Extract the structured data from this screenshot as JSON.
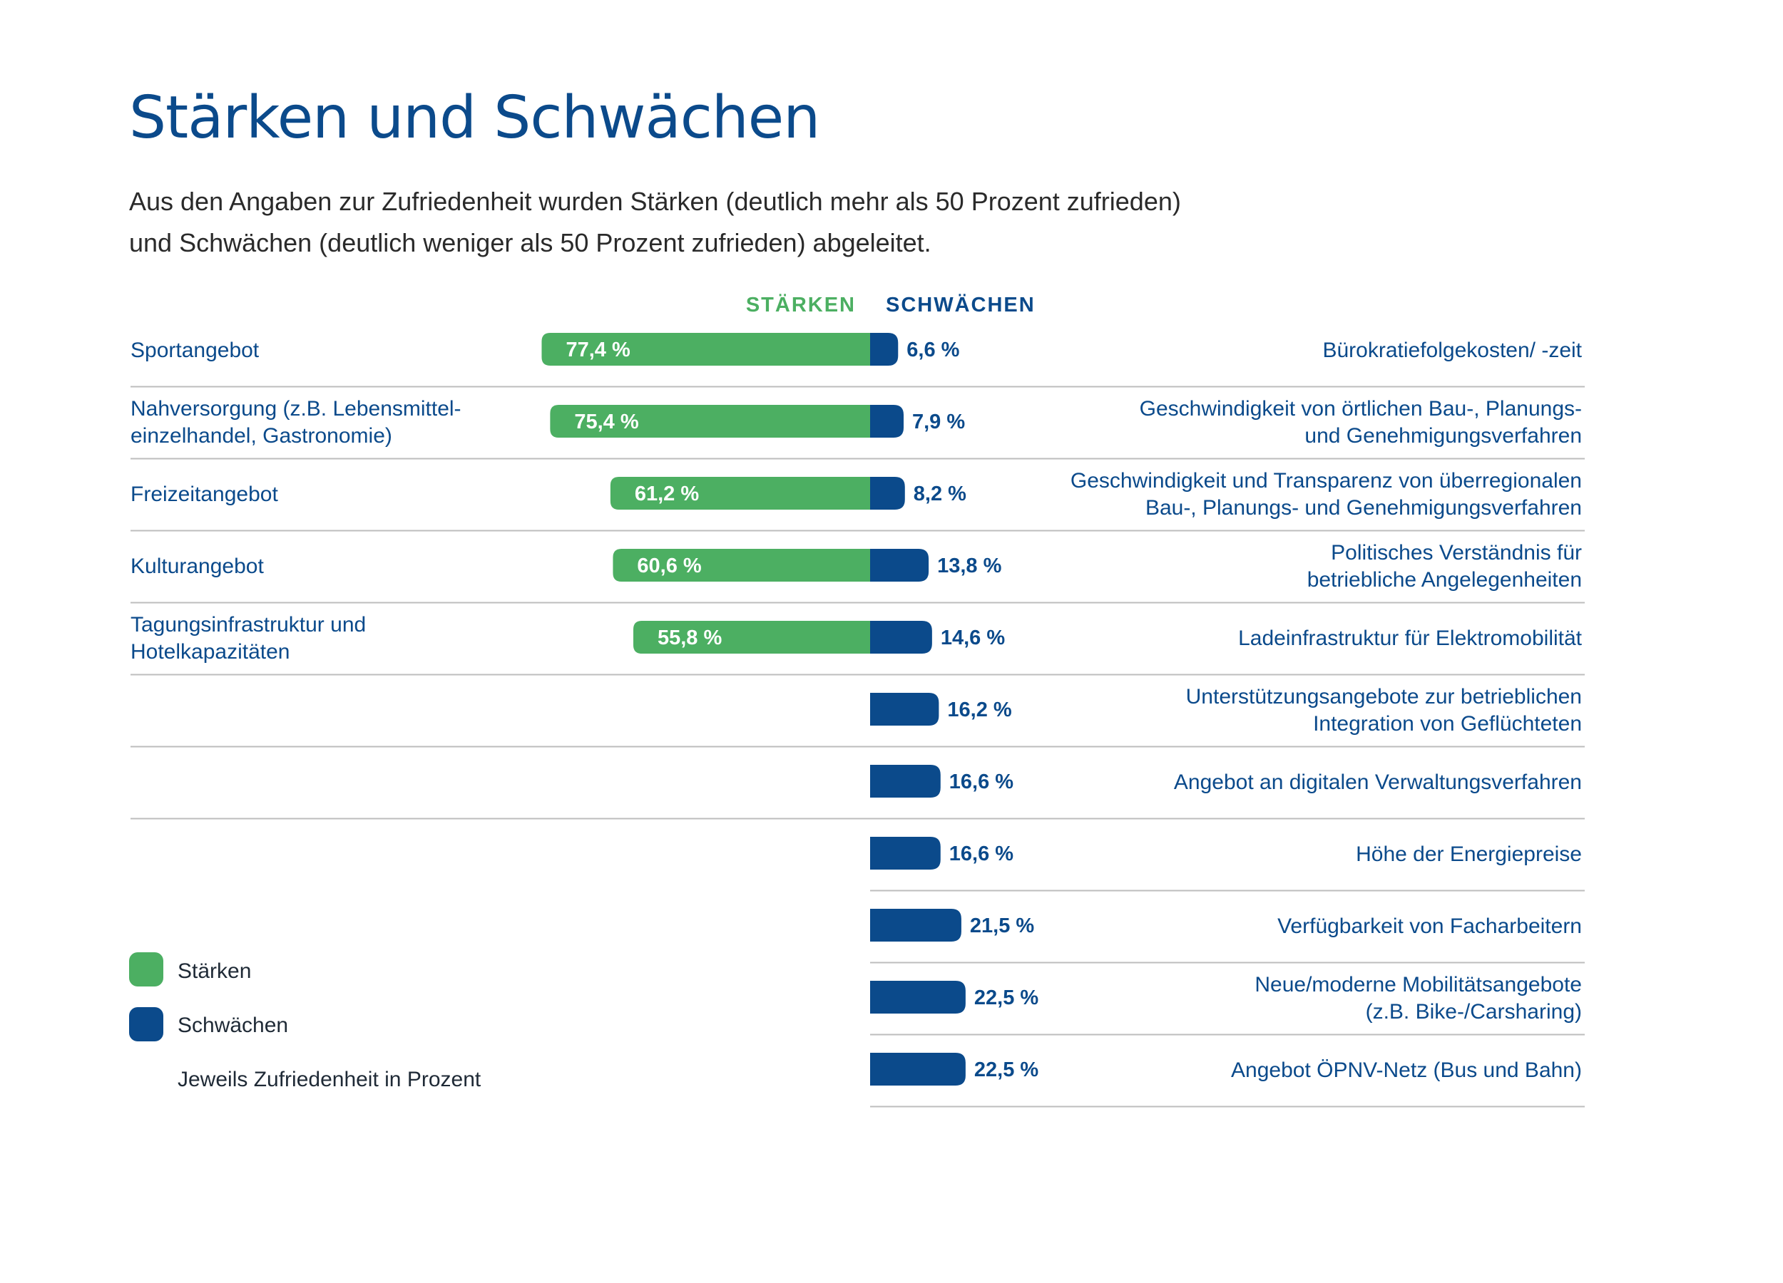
{
  "header": {
    "title": "Stärken und Schwächen",
    "subtitle_line1": "Aus den Angaben zur Zufriedenheit wurden Stärken (deutlich mehr als 50 Prozent zufrieden)",
    "subtitle_line2": "und Schwächen (deutlich weniger als 50 Prozent zufrieden) abgeleitet."
  },
  "colors": {
    "strength": "#4caf62",
    "weakness": "#0b4a8b",
    "rule": "#bdbdbd",
    "text": "#0b4a8b"
  },
  "chart_data": {
    "type": "bar",
    "title": "Stärken und Schwächen",
    "unit": "%",
    "column_headers": {
      "strengths": "STÄRKEN",
      "weaknesses": "SCHWÄCHEN"
    },
    "strengths": [
      {
        "label": [
          "Sportangebot"
        ],
        "value": 77.4,
        "display": "77,4 %"
      },
      {
        "label": [
          "Nahversorgung (z.B. Lebensmittel-",
          "einzelhandel, Gastronomie)"
        ],
        "value": 75.4,
        "display": "75,4 %"
      },
      {
        "label": [
          "Freizeitangebot"
        ],
        "value": 61.2,
        "display": "61,2 %"
      },
      {
        "label": [
          "Kulturangebot"
        ],
        "value": 60.6,
        "display": "60,6 %"
      },
      {
        "label": [
          "Tagungsinfrastruktur und",
          "Hotelkapazitäten"
        ],
        "value": 55.8,
        "display": "55,8 %"
      }
    ],
    "weaknesses": [
      {
        "label": [
          "Bürokratiefolgekosten/ -zeit"
        ],
        "value": 6.6,
        "display": "6,6 %"
      },
      {
        "label": [
          "Geschwindigkeit von örtlichen Bau-, Planungs-",
          "und Genehmigungsverfahren"
        ],
        "value": 7.9,
        "display": "7,9 %"
      },
      {
        "label": [
          "Geschwindigkeit und Transparenz von überregionalen",
          "Bau-, Planungs- und Genehmigungsverfahren"
        ],
        "value": 8.2,
        "display": "8,2 %"
      },
      {
        "label": [
          "Politisches Verständnis für",
          "betriebliche Angelegenheiten"
        ],
        "value": 13.8,
        "display": "13,8 %"
      },
      {
        "label": [
          "Ladeinfrastruktur für Elektromobilität"
        ],
        "value": 14.6,
        "display": "14,6 %"
      },
      {
        "label": [
          "Unterstützungsangebote zur betrieblichen",
          "Integration von Geflüchteten"
        ],
        "value": 16.2,
        "display": "16,2 %"
      },
      {
        "label": [
          "Angebot an digitalen Verwaltungsverfahren"
        ],
        "value": 16.6,
        "display": "16,6 %"
      },
      {
        "label": [
          "Höhe der Energiepreise"
        ],
        "value": 16.6,
        "display": "16,6 %"
      },
      {
        "label": [
          "Verfügbarkeit von Facharbeitern"
        ],
        "value": 21.5,
        "display": "21,5 %"
      },
      {
        "label": [
          "Neue/moderne Mobilitätsangebote",
          "(z.B. Bike-/Carsharing)"
        ],
        "value": 22.5,
        "display": "22,5 %"
      },
      {
        "label": [
          "Angebot ÖPNV-Netz (Bus und Bahn)"
        ],
        "value": 22.5,
        "display": "22,5 %"
      }
    ],
    "legend": {
      "strengths": "Stärken",
      "weaknesses": "Schwächen",
      "note": "Jeweils Zufriedenheit in Prozent"
    }
  }
}
